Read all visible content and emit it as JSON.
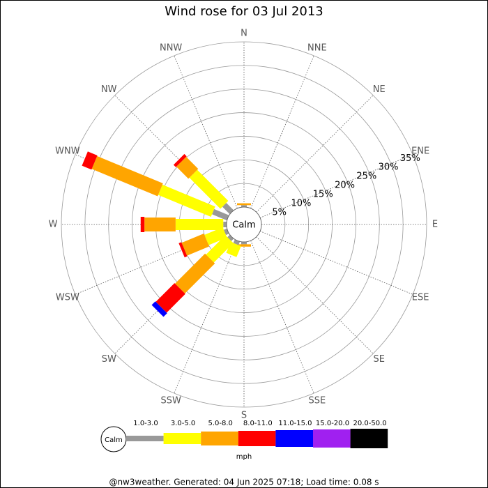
{
  "chart_data": {
    "type": "windrose",
    "title": "Wind rose for 03 Jul 2013",
    "categories": [
      "N",
      "NNE",
      "NE",
      "ENE",
      "E",
      "ESE",
      "SE",
      "SSE",
      "S",
      "SSW",
      "SW",
      "WSW",
      "W",
      "WNW",
      "NW",
      "NNW"
    ],
    "series": [
      {
        "name": "1.0-3.0",
        "color": "#999999",
        "values": [
          0.4,
          0,
          0,
          0,
          0,
          0,
          0,
          0,
          0.5,
          0.8,
          0.7,
          0.7,
          0.7,
          3.4,
          2.2,
          0
        ]
      },
      {
        "name": "3.0-5.0",
        "color": "#ffff00",
        "values": [
          0,
          0,
          0,
          0,
          0,
          0,
          0,
          0,
          0,
          2.5,
          5.8,
          4.2,
          10.1,
          12.1,
          9.3,
          0
        ]
      },
      {
        "name": "5.0-8.0",
        "color": "#ffa500",
        "values": [
          0.4,
          0,
          0,
          0,
          0,
          0,
          0,
          0,
          0.5,
          0,
          9.0,
          5.1,
          6.6,
          15.1,
          3.6,
          0
        ]
      },
      {
        "name": "8.0-11.0",
        "color": "#ff0000",
        "values": [
          0,
          0,
          0,
          0,
          0,
          0,
          0,
          0,
          0,
          0,
          5.6,
          0.6,
          0.8,
          2.2,
          0.7,
          0
        ]
      },
      {
        "name": "11.0-15.0",
        "color": "#0000ff",
        "values": [
          0,
          0,
          0,
          0,
          0,
          0,
          0,
          0,
          0,
          0,
          1.1,
          0,
          0,
          0,
          0,
          0
        ]
      },
      {
        "name": "15.0-20.0",
        "color": "#a020f0",
        "values": [
          0,
          0,
          0,
          0,
          0,
          0,
          0,
          0,
          0,
          0,
          0,
          0,
          0,
          0,
          0,
          0
        ]
      },
      {
        "name": "20.0-50.0",
        "color": "#000000",
        "values": [
          0,
          0,
          0,
          0,
          0,
          0,
          0,
          0,
          0,
          0,
          0,
          0,
          0,
          0,
          0,
          0
        ]
      }
    ],
    "rlim": [
      0,
      35
    ],
    "rticks": [
      {
        "value": 5,
        "label": "5%"
      },
      {
        "value": 10,
        "label": "10%"
      },
      {
        "value": 15,
        "label": "15%"
      },
      {
        "value": 20,
        "label": "20%"
      },
      {
        "value": 25,
        "label": "25%"
      },
      {
        "value": 30,
        "label": "30%"
      },
      {
        "value": 35,
        "label": "35%"
      }
    ],
    "calm_label": "Calm",
    "legend_unit": "mph",
    "footer": "@nw3weather. Generated: 04 Jun 2025 07:18; Load time: 0.08 s"
  }
}
